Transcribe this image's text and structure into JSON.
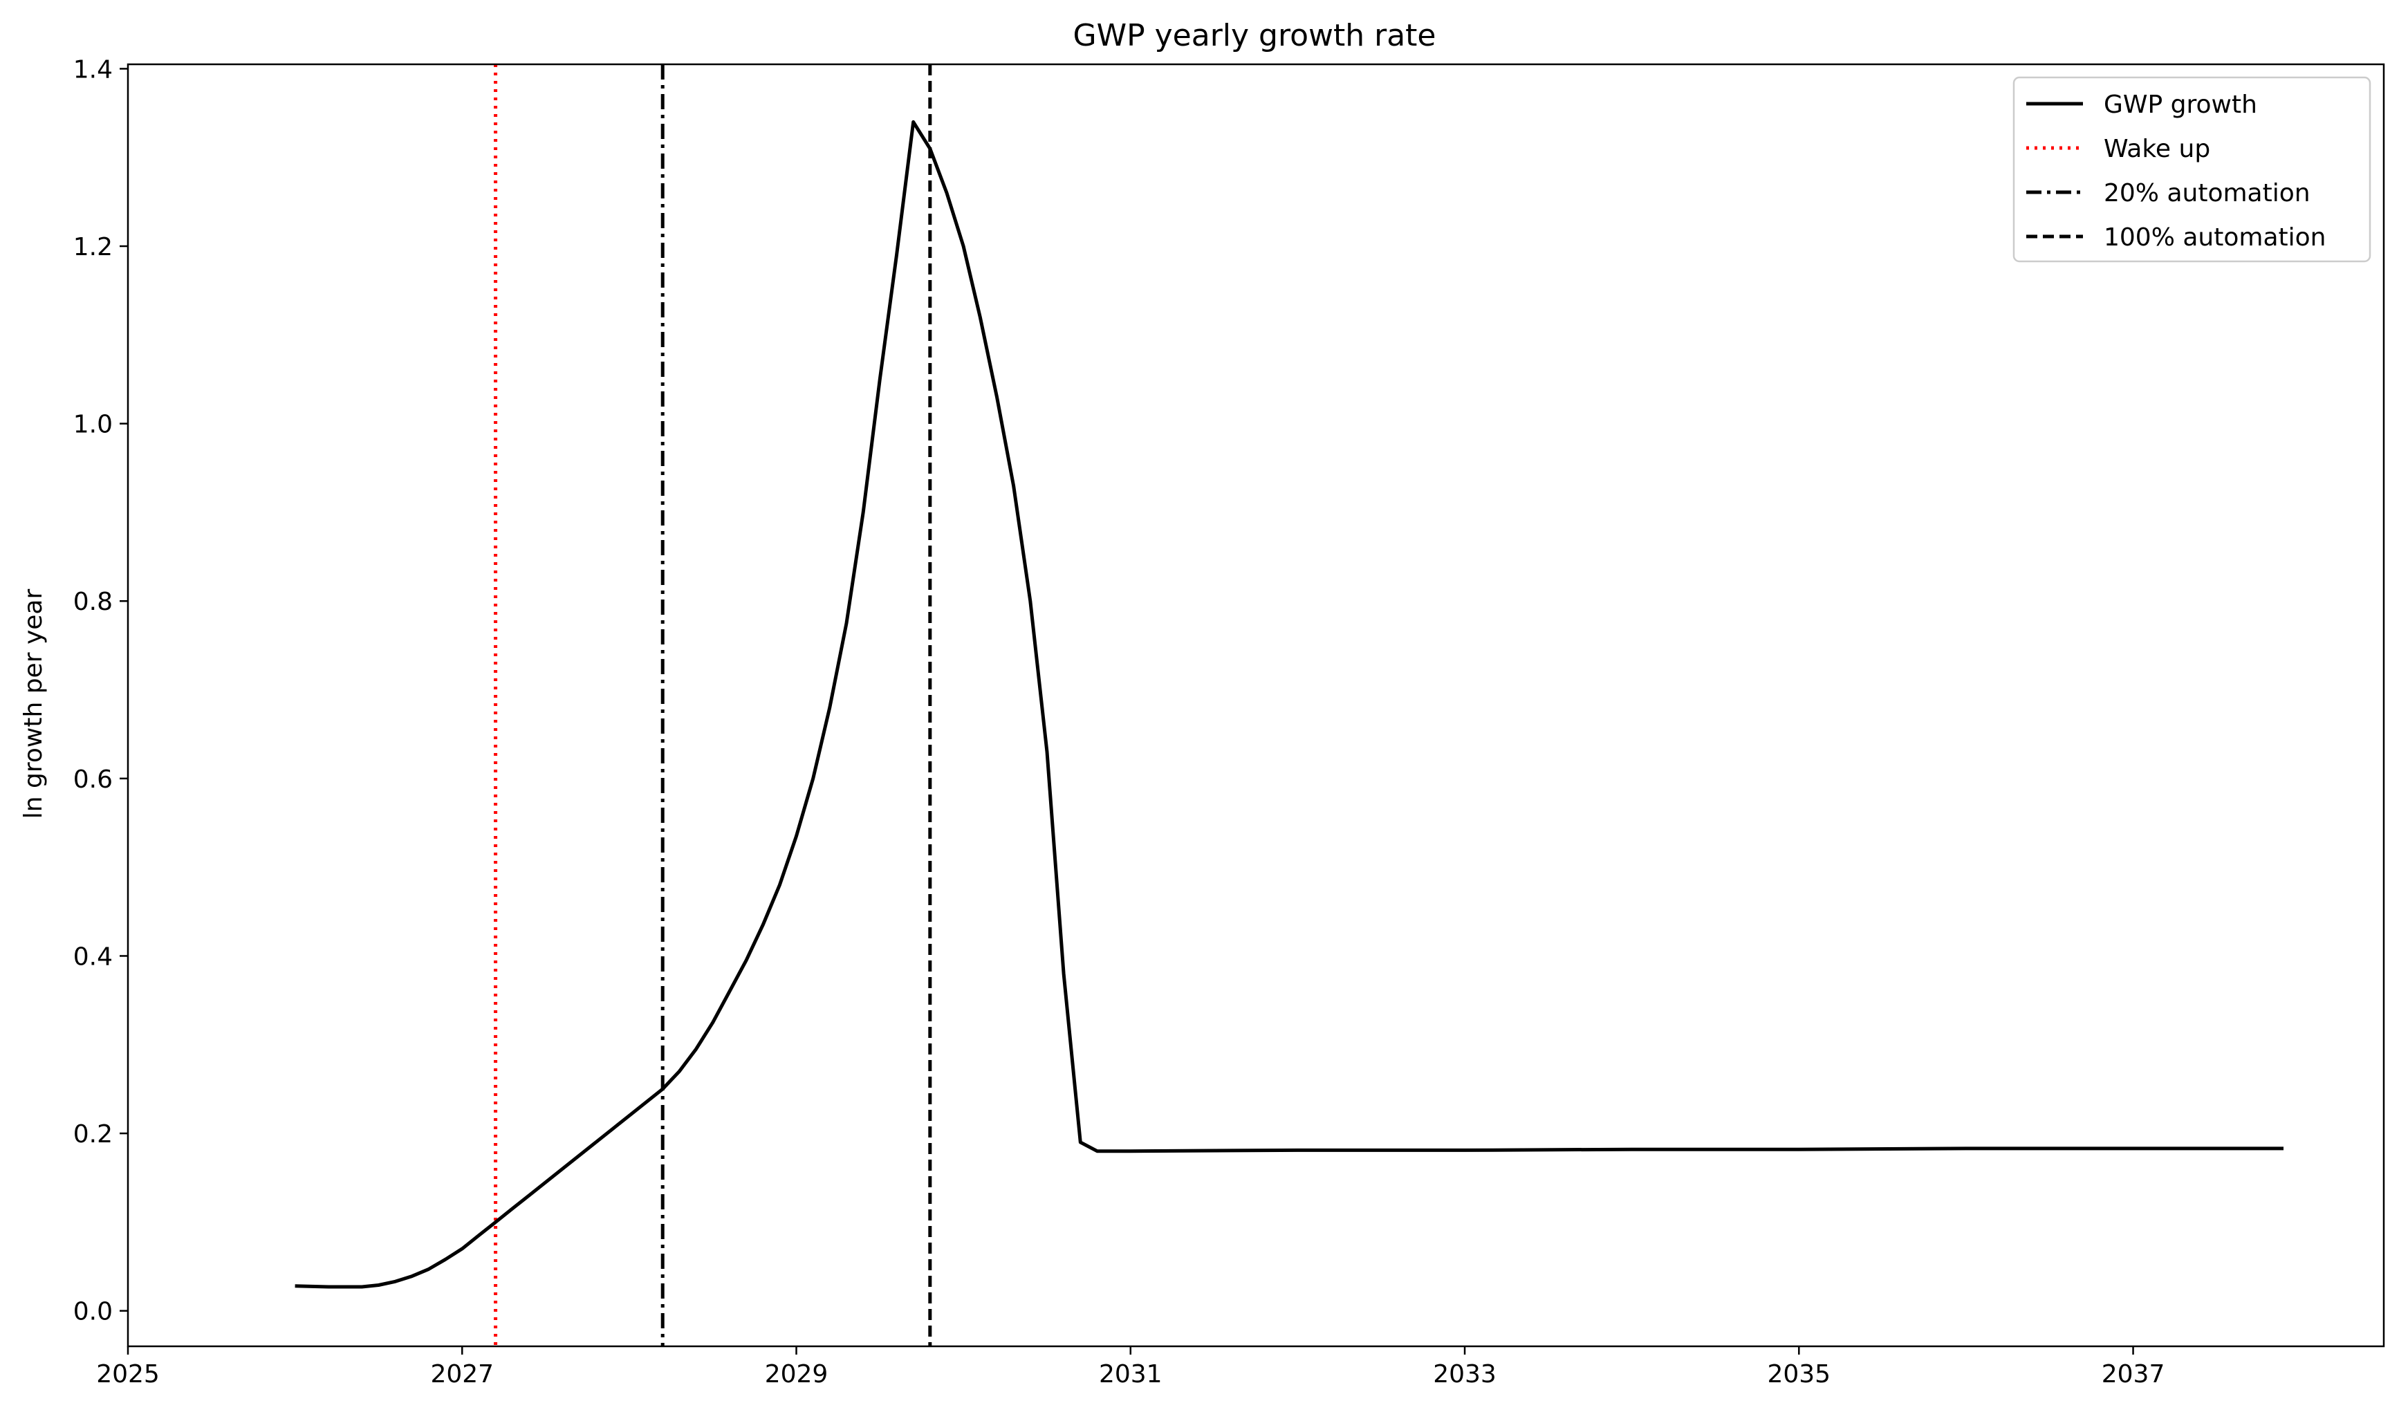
{
  "chart_data": {
    "type": "line",
    "title": "GWP yearly growth rate",
    "xlabel": "",
    "ylabel": "ln growth per year",
    "xlim": [
      2025,
      2038.5
    ],
    "ylim": [
      -0.04,
      1.405
    ],
    "x_ticks": [
      2025,
      2027,
      2029,
      2031,
      2033,
      2035,
      2037
    ],
    "y_ticks": [
      0.0,
      0.2,
      0.4,
      0.6,
      0.8,
      1.0,
      1.2,
      1.4
    ],
    "y_tick_labels": [
      "0.0",
      "0.2",
      "0.4",
      "0.6",
      "0.8",
      "1.0",
      "1.2",
      "1.4"
    ],
    "grid": false,
    "legend_position": "top-right",
    "series": [
      {
        "name": "GWP growth",
        "color": "#000000",
        "style": "solid",
        "x": [
          2026.0,
          2026.2,
          2026.4,
          2026.5,
          2026.6,
          2026.7,
          2026.8,
          2026.9,
          2027.0,
          2027.1,
          2027.2,
          2027.3,
          2027.4,
          2027.6,
          2027.8,
          2028.0,
          2028.2,
          2028.3,
          2028.4,
          2028.5,
          2028.6,
          2028.7,
          2028.8,
          2028.9,
          2029.0,
          2029.1,
          2029.2,
          2029.3,
          2029.4,
          2029.5,
          2029.6,
          2029.7,
          2029.8,
          2029.9,
          2030.0,
          2030.1,
          2030.2,
          2030.3,
          2030.4,
          2030.5,
          2030.6,
          2030.7,
          2030.8,
          2030.9,
          2031.0,
          2032.0,
          2033.0,
          2034.0,
          2035.0,
          2036.0,
          2037.0,
          2037.9
        ],
        "y": [
          0.028,
          0.027,
          0.027,
          0.029,
          0.033,
          0.039,
          0.047,
          0.058,
          0.07,
          0.085,
          0.1,
          0.115,
          0.13,
          0.16,
          0.19,
          0.22,
          0.25,
          0.27,
          0.295,
          0.325,
          0.36,
          0.395,
          0.435,
          0.48,
          0.535,
          0.6,
          0.68,
          0.775,
          0.9,
          1.05,
          1.19,
          1.34,
          1.31,
          1.26,
          1.2,
          1.12,
          1.03,
          0.93,
          0.8,
          0.63,
          0.38,
          0.19,
          0.18,
          0.18,
          0.18,
          0.181,
          0.181,
          0.182,
          0.182,
          0.183,
          0.183,
          0.183
        ]
      }
    ],
    "vlines": [
      {
        "name": "Wake up",
        "x": 2027.2,
        "color": "#ff0000",
        "style": "dotted"
      },
      {
        "name": "20% automation",
        "x": 2028.2,
        "color": "#000000",
        "style": "dashdot"
      },
      {
        "name": "100% automation",
        "x": 2029.8,
        "color": "#000000",
        "style": "dashed"
      }
    ]
  }
}
